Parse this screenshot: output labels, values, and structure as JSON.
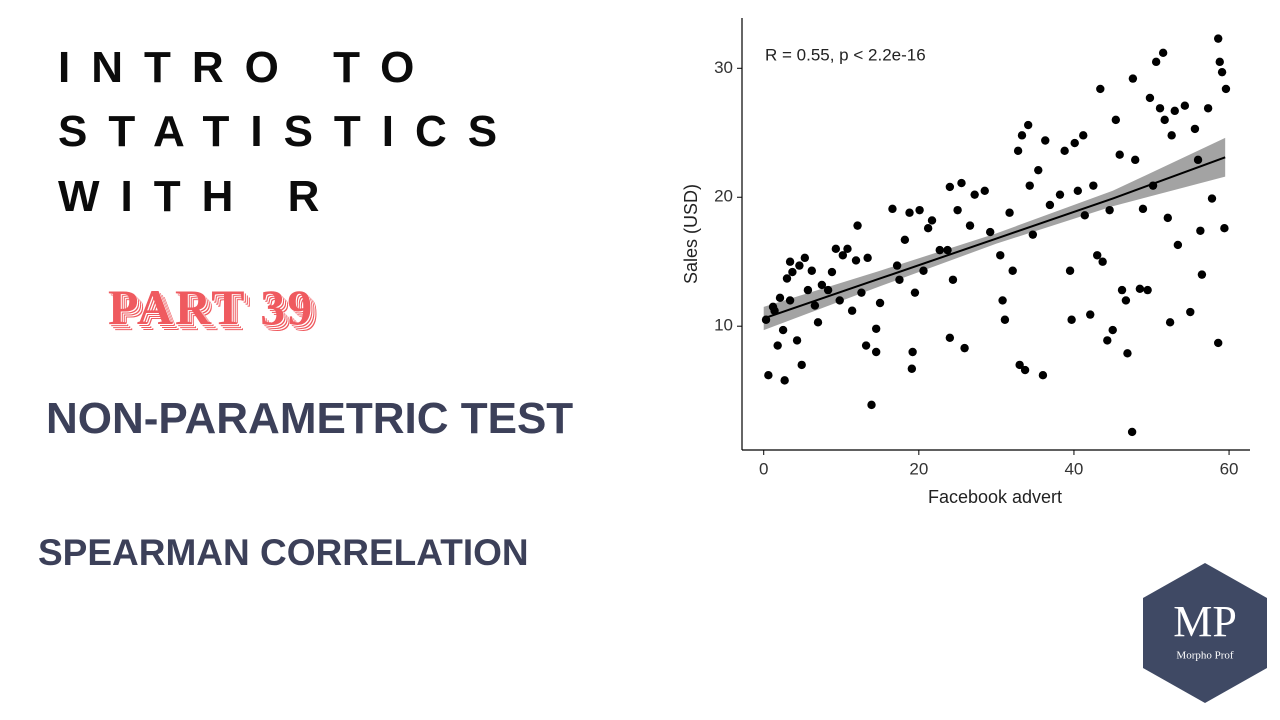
{
  "header": {
    "title_lines": [
      "INTRO TO",
      "STATISTICS",
      "WITH R"
    ],
    "part": "PART 39",
    "subtitle": "NON-PARAMETRIC TEST",
    "topic": "SPEARMAN CORRELATION"
  },
  "logo": {
    "mark": "MP",
    "name": "Morpho Prof"
  },
  "chart_data": {
    "type": "scatter",
    "annotation": "R = 0.55, p < 2.2e-16",
    "x_label": "Facebook advert",
    "y_label": "Sales (USD)",
    "xlim": [
      -2.8,
      62.7
    ],
    "ylim": [
      0.4,
      33.9
    ],
    "xticks": [
      0,
      20,
      40,
      60
    ],
    "yticks": [
      10,
      20,
      30
    ],
    "grid": false,
    "color": "#000000",
    "x": [
      0.3,
      0.6,
      1.2,
      1.4,
      1.8,
      2.1,
      2.5,
      2.7,
      3.0,
      3.4,
      3.4,
      3.7,
      4.3,
      4.6,
      4.9,
      5.3,
      5.7,
      6.2,
      6.6,
      7.0,
      7.5,
      8.3,
      8.8,
      9.3,
      9.8,
      10.2,
      10.8,
      11.4,
      11.9,
      12.1,
      12.6,
      13.2,
      13.4,
      13.9,
      14.5,
      14.5,
      15.0,
      16.6,
      17.2,
      17.5,
      18.2,
      18.8,
      19.1,
      19.2,
      19.5,
      20.1,
      20.6,
      21.2,
      21.7,
      22.7,
      23.7,
      24.0,
      24.4,
      24.0,
      25.0,
      25.5,
      25.9,
      26.6,
      27.2,
      28.5,
      29.2,
      30.5,
      30.8,
      31.1,
      31.7,
      32.1,
      32.8,
      33.0,
      33.3,
      33.7,
      34.1,
      34.3,
      34.7,
      35.4,
      36.0,
      36.3,
      36.9,
      38.2,
      38.8,
      39.5,
      39.7,
      40.1,
      40.5,
      41.2,
      41.4,
      42.1,
      42.5,
      43.0,
      43.4,
      43.7,
      44.3,
      44.6,
      45.0,
      45.4,
      45.9,
      46.2,
      46.7,
      46.9,
      47.5,
      47.6,
      47.9,
      48.5,
      48.9,
      49.5,
      49.8,
      50.2,
      50.6,
      51.1,
      51.5,
      51.7,
      52.1,
      52.4,
      52.6,
      53.0,
      53.4,
      54.3,
      55.0,
      55.6,
      56.0,
      56.3,
      56.5,
      57.3,
      57.8,
      58.6,
      58.8,
      58.6,
      59.1,
      59.4,
      59.6
    ],
    "values": [
      10.5,
      6.2,
      11.5,
      11.2,
      8.5,
      12.2,
      9.7,
      5.8,
      13.7,
      15.0,
      12.0,
      14.2,
      8.9,
      14.7,
      7.0,
      15.3,
      12.8,
      14.3,
      11.6,
      10.3,
      13.2,
      12.8,
      14.2,
      16.0,
      12.0,
      15.5,
      16.0,
      11.2,
      15.1,
      17.8,
      12.6,
      8.5,
      15.3,
      3.9,
      9.8,
      8.0,
      11.8,
      19.1,
      14.7,
      13.6,
      16.7,
      18.8,
      6.7,
      8.0,
      12.6,
      19.0,
      14.3,
      17.6,
      18.2,
      15.9,
      15.9,
      20.8,
      13.6,
      9.1,
      19.0,
      21.1,
      8.3,
      17.8,
      20.2,
      20.5,
      17.3,
      15.5,
      12.0,
      10.5,
      18.8,
      14.3,
      23.6,
      7.0,
      24.8,
      6.6,
      25.6,
      20.9,
      17.1,
      22.1,
      6.2,
      24.4,
      19.4,
      20.2,
      23.6,
      14.3,
      10.5,
      24.2,
      20.5,
      24.8,
      18.6,
      10.9,
      20.9,
      15.5,
      28.4,
      15.0,
      8.9,
      19.0,
      9.7,
      26.0,
      23.3,
      12.8,
      12.0,
      7.9,
      1.8,
      29.2,
      22.9,
      12.9,
      19.1,
      12.8,
      27.7,
      20.9,
      30.5,
      26.9,
      31.2,
      26.0,
      18.4,
      10.3,
      24.8,
      26.7,
      16.3,
      27.1,
      11.1,
      25.3,
      22.9,
      17.4,
      14.0,
      26.9,
      19.9,
      32.3,
      30.5,
      8.7,
      29.7,
      17.6,
      28.4
    ],
    "fit": {
      "x": [
        0,
        15,
        30,
        45,
        59.5
      ],
      "y": [
        10.6,
        13.7,
        16.8,
        19.9,
        23.1
      ],
      "lower": [
        9.7,
        13.1,
        16.4,
        19.3,
        21.6
      ],
      "upper": [
        11.5,
        14.3,
        17.2,
        20.5,
        24.6
      ],
      "color": "#000000",
      "band_color": "#999999"
    }
  }
}
